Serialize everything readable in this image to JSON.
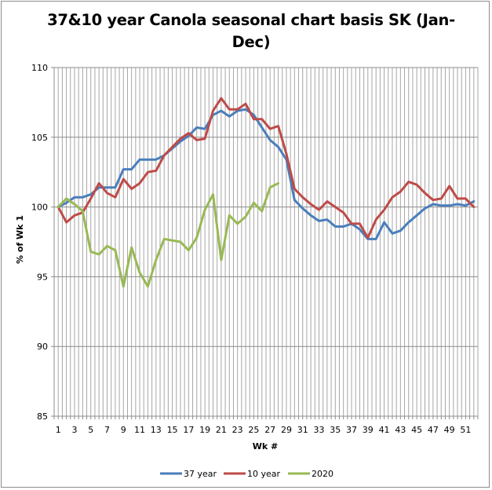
{
  "chart_data": {
    "type": "line",
    "title": "37&10 year Canola seasonal chart basis SK (Jan-Dec)",
    "xlabel": "Wk #",
    "ylabel": "% of Wk 1",
    "ylim": [
      85,
      110
    ],
    "yticks": [
      85,
      90,
      95,
      100,
      105,
      110
    ],
    "x": [
      1,
      2,
      3,
      4,
      5,
      6,
      7,
      8,
      9,
      10,
      11,
      12,
      13,
      14,
      15,
      16,
      17,
      18,
      19,
      20,
      21,
      22,
      23,
      24,
      25,
      26,
      27,
      28,
      29,
      30,
      31,
      32,
      33,
      34,
      35,
      36,
      37,
      38,
      39,
      40,
      41,
      42,
      43,
      44,
      45,
      46,
      47,
      48,
      49,
      50,
      51,
      52
    ],
    "xtick_labels": [
      "1",
      "3",
      "5",
      "7",
      "9",
      "11",
      "13",
      "15",
      "17",
      "19",
      "21",
      "23",
      "25",
      "27",
      "29",
      "31",
      "33",
      "35",
      "37",
      "39",
      "41",
      "43",
      "45",
      "47",
      "49",
      "51"
    ],
    "grid": true,
    "legend": "bottom",
    "series": [
      {
        "name": "37 year",
        "color": "#4a7ebb",
        "values": [
          100.0,
          100.3,
          100.7,
          100.7,
          100.9,
          101.4,
          101.4,
          101.4,
          102.7,
          102.7,
          103.4,
          103.4,
          103.4,
          103.7,
          104.2,
          104.7,
          105.1,
          105.7,
          105.6,
          106.6,
          106.9,
          106.5,
          106.9,
          107.0,
          106.6,
          105.7,
          104.8,
          104.3,
          103.4,
          100.5,
          99.9,
          99.4,
          99.0,
          99.1,
          98.6,
          98.6,
          98.8,
          98.4,
          97.7,
          97.7,
          98.9,
          98.1,
          98.3,
          98.9,
          99.4,
          99.9,
          100.2,
          100.1,
          100.1,
          100.2,
          100.1,
          100.4
        ]
      },
      {
        "name": "10 year",
        "color": "#be4b48",
        "values": [
          100.0,
          98.9,
          99.4,
          99.6,
          100.6,
          101.7,
          101.0,
          100.7,
          102.0,
          101.3,
          101.7,
          102.5,
          102.6,
          103.7,
          104.3,
          104.9,
          105.3,
          104.8,
          104.9,
          106.9,
          107.8,
          107.0,
          107.0,
          107.4,
          106.3,
          106.3,
          105.6,
          105.8,
          103.8,
          101.3,
          100.7,
          100.2,
          99.8,
          100.4,
          100.0,
          99.6,
          98.8,
          98.8,
          97.8,
          99.1,
          99.8,
          100.7,
          101.1,
          101.8,
          101.6,
          101.0,
          100.5,
          100.6,
          101.5,
          100.6,
          100.6,
          100.0
        ]
      },
      {
        "name": "2020",
        "color": "#98b954",
        "values": [
          100.0,
          100.6,
          100.2,
          99.7,
          96.8,
          96.6,
          97.2,
          96.9,
          94.3,
          97.1,
          95.3,
          94.3,
          96.2,
          97.7,
          97.6,
          97.5,
          96.9,
          97.8,
          99.8,
          100.9,
          96.2,
          99.4,
          98.8,
          99.3,
          100.3,
          99.7,
          101.4,
          101.7
        ]
      }
    ]
  }
}
